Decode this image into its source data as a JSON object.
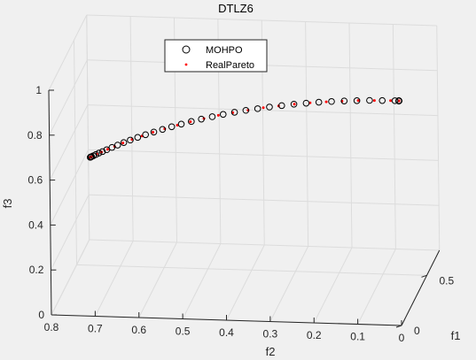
{
  "chart_data": {
    "type": "scatter",
    "title": "DTLZ6",
    "xlabel": "f1",
    "ylabel": "f2",
    "zlabel": "f3",
    "x_ticks": [
      "0",
      "0.5"
    ],
    "y_ticks": [
      "0.8",
      "0.7",
      "0.6",
      "0.5",
      "0.4",
      "0.3",
      "0.2",
      "0.1",
      "0"
    ],
    "z_ticks": [
      "0",
      "0.2",
      "0.4",
      "0.6",
      "0.8",
      "1"
    ],
    "xlim": [
      0,
      0.75
    ],
    "ylim": [
      0,
      0.8
    ],
    "zlim": [
      0,
      1
    ],
    "grid": true,
    "legend_position": "top",
    "series": [
      {
        "name": "MOHPO",
        "marker": "open-circle",
        "color": "#000000",
        "x": [
          0.0,
          0.0,
          0.0,
          0.0,
          0.0,
          0.0,
          0.0,
          0.0,
          0.0,
          0.0,
          0.0,
          0.0,
          0.0,
          0.0,
          0.0,
          0.0,
          0.0,
          0.0,
          0.0,
          0.0,
          0.0,
          0.0,
          0.0,
          0.0,
          0.0,
          0.0,
          0.0,
          0.0,
          0.0,
          0.0,
          0.0,
          0.0,
          0.0,
          0.0,
          0.0,
          0.0,
          0.0,
          0.0,
          0.0,
          0.0,
          0.0,
          0.0,
          0.0,
          0.0,
          0.0,
          0.0,
          0.0,
          0.0,
          0.0,
          0.0,
          0.0
        ],
        "y": [
          0.707,
          0.706,
          0.704,
          0.7,
          0.694,
          0.687,
          0.679,
          0.669,
          0.657,
          0.644,
          0.63,
          0.615,
          0.598,
          0.58,
          0.561,
          0.541,
          0.52,
          0.498,
          0.475,
          0.452,
          0.427,
          0.402,
          0.376,
          0.35,
          0.323,
          0.296,
          0.268,
          0.24,
          0.212,
          0.183,
          0.154,
          0.125,
          0.096,
          0.067,
          0.038,
          0.009,
          0.0,
          0.0,
          0.0,
          0.0,
          0.0,
          0.0,
          0.0,
          0.0,
          0.0,
          0.0,
          0.0,
          0.0,
          0.0,
          0.0,
          0.0
        ],
        "z": [
          0.707,
          0.708,
          0.71,
          0.714,
          0.72,
          0.727,
          0.734,
          0.743,
          0.754,
          0.765,
          0.777,
          0.789,
          0.802,
          0.815,
          0.828,
          0.841,
          0.854,
          0.867,
          0.88,
          0.892,
          0.904,
          0.916,
          0.927,
          0.937,
          0.946,
          0.955,
          0.963,
          0.971,
          0.977,
          0.983,
          0.988,
          0.992,
          0.995,
          0.998,
          0.999,
          1.0,
          1.0,
          1.0,
          1.0,
          1.0,
          1.0,
          1.0,
          1.0,
          1.0,
          1.0,
          1.0,
          1.0,
          1.0,
          1.0,
          1.0,
          1.0
        ]
      },
      {
        "name": "RealPareto",
        "marker": "dot",
        "color": "#ff0000",
        "x": [
          0.0,
          0.0,
          0.0,
          0.0,
          0.0,
          0.0,
          0.0,
          0.0,
          0.0,
          0.0,
          0.0,
          0.0,
          0.0,
          0.0,
          0.0,
          0.0,
          0.0,
          0.0,
          0.0,
          0.0,
          0.0,
          0.0,
          0.0,
          0.0,
          0.0,
          0.0,
          0.0,
          0.0,
          0.0,
          0.0,
          0.0,
          0.0,
          0.0,
          0.0,
          0.0,
          0.0,
          0.0,
          0.0,
          0.0,
          0.0,
          0.0
        ],
        "y": [
          0.707,
          0.705,
          0.7,
          0.692,
          0.681,
          0.667,
          0.651,
          0.632,
          0.611,
          0.588,
          0.563,
          0.536,
          0.507,
          0.477,
          0.446,
          0.413,
          0.38,
          0.345,
          0.31,
          0.275,
          0.239,
          0.203,
          0.166,
          0.13,
          0.093,
          0.056,
          0.019,
          0.0,
          0.0,
          0.0,
          0.0,
          0.0,
          0.0,
          0.0,
          0.0,
          0.0,
          0.0,
          0.0,
          0.0,
          0.0,
          0.0
        ],
        "z": [
          0.707,
          0.709,
          0.714,
          0.722,
          0.732,
          0.745,
          0.759,
          0.775,
          0.792,
          0.809,
          0.827,
          0.844,
          0.862,
          0.879,
          0.895,
          0.911,
          0.925,
          0.938,
          0.951,
          0.961,
          0.971,
          0.979,
          0.986,
          0.991,
          0.996,
          0.998,
          1.0,
          1.0,
          1.0,
          1.0,
          1.0,
          1.0,
          1.0,
          1.0,
          1.0,
          1.0,
          1.0,
          1.0,
          1.0,
          1.0,
          1.0
        ]
      }
    ]
  }
}
